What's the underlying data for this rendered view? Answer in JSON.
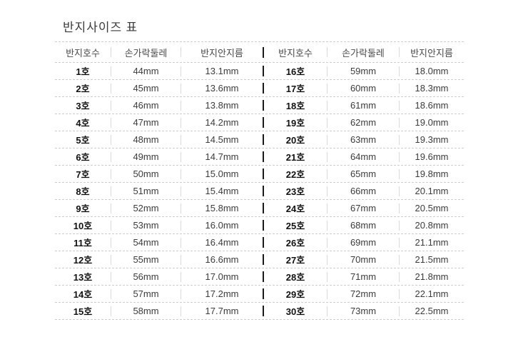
{
  "page": {
    "title": "반지사이즈 표"
  },
  "table": {
    "columns": [
      "반지호수",
      "손가락둘레",
      "반지안지름"
    ],
    "rows": [
      {
        "left": {
          "size": "1호",
          "circumference": "44mm",
          "diameter": "13.1mm"
        },
        "right": {
          "size": "16호",
          "circumference": "59mm",
          "diameter": "18.0mm"
        }
      },
      {
        "left": {
          "size": "2호",
          "circumference": "45mm",
          "diameter": "13.6mm"
        },
        "right": {
          "size": "17호",
          "circumference": "60mm",
          "diameter": "18.3mm"
        }
      },
      {
        "left": {
          "size": "3호",
          "circumference": "46mm",
          "diameter": "13.8mm"
        },
        "right": {
          "size": "18호",
          "circumference": "61mm",
          "diameter": "18.6mm"
        }
      },
      {
        "left": {
          "size": "4호",
          "circumference": "47mm",
          "diameter": "14.2mm"
        },
        "right": {
          "size": "19호",
          "circumference": "62mm",
          "diameter": "19.0mm"
        }
      },
      {
        "left": {
          "size": "5호",
          "circumference": "48mm",
          "diameter": "14.5mm"
        },
        "right": {
          "size": "20호",
          "circumference": "63mm",
          "diameter": "19.3mm"
        }
      },
      {
        "left": {
          "size": "6호",
          "circumference": "49mm",
          "diameter": "14.7mm"
        },
        "right": {
          "size": "21호",
          "circumference": "64mm",
          "diameter": "19.6mm"
        }
      },
      {
        "left": {
          "size": "7호",
          "circumference": "50mm",
          "diameter": "15.0mm"
        },
        "right": {
          "size": "22호",
          "circumference": "65mm",
          "diameter": "19.8mm"
        }
      },
      {
        "left": {
          "size": "8호",
          "circumference": "51mm",
          "diameter": "15.4mm"
        },
        "right": {
          "size": "23호",
          "circumference": "66mm",
          "diameter": "20.1mm"
        }
      },
      {
        "left": {
          "size": "9호",
          "circumference": "52mm",
          "diameter": "15.8mm"
        },
        "right": {
          "size": "24호",
          "circumference": "67mm",
          "diameter": "20.5mm"
        }
      },
      {
        "left": {
          "size": "10호",
          "circumference": "53mm",
          "diameter": "16.0mm"
        },
        "right": {
          "size": "25호",
          "circumference": "68mm",
          "diameter": "20.8mm"
        }
      },
      {
        "left": {
          "size": "11호",
          "circumference": "54mm",
          "diameter": "16.4mm"
        },
        "right": {
          "size": "26호",
          "circumference": "69mm",
          "diameter": "21.1mm"
        }
      },
      {
        "left": {
          "size": "12호",
          "circumference": "55mm",
          "diameter": "16.6mm"
        },
        "right": {
          "size": "27호",
          "circumference": "70mm",
          "diameter": "21.5mm"
        }
      },
      {
        "left": {
          "size": "13호",
          "circumference": "56mm",
          "diameter": "17.0mm"
        },
        "right": {
          "size": "28호",
          "circumference": "71mm",
          "diameter": "21.8mm"
        }
      },
      {
        "left": {
          "size": "14호",
          "circumference": "57mm",
          "diameter": "17.2mm"
        },
        "right": {
          "size": "29호",
          "circumference": "72mm",
          "diameter": "22.1mm"
        }
      },
      {
        "left": {
          "size": "15호",
          "circumference": "58mm",
          "diameter": "17.7mm"
        },
        "right": {
          "size": "30호",
          "circumference": "73mm",
          "diameter": "22.5mm"
        }
      }
    ]
  },
  "colors": {
    "background": "#ffffff",
    "title_text": "#3a3a3a",
    "header_text": "#4a4a4a",
    "value_text": "#3c3c3c",
    "size_text": "#111111",
    "dashed_line": "#cccccc",
    "column_divider": "#d9d9d9",
    "table_divider": "#1a1a1a"
  }
}
